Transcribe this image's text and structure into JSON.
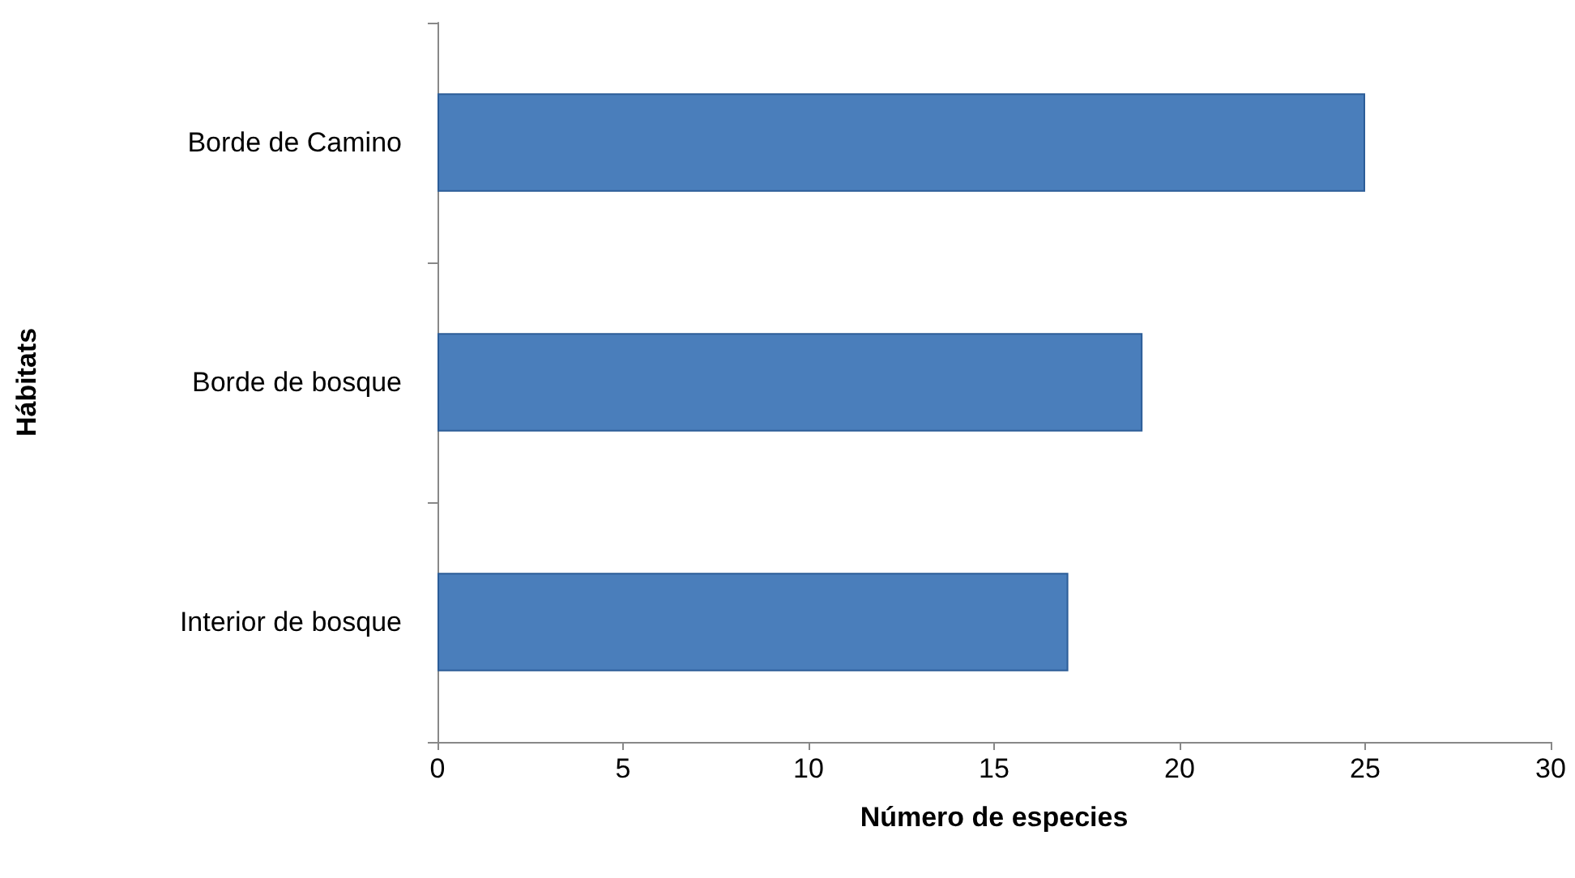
{
  "chart_data": {
    "type": "bar",
    "orientation": "horizontal",
    "xlabel": "Número de especies",
    "ylabel": "Hábitats",
    "categories": [
      "Borde de Camino",
      "Borde de bosque",
      "Interior de bosque"
    ],
    "values": [
      25,
      19,
      17
    ],
    "color": "#4a7ebb",
    "xlim": [
      0,
      30
    ],
    "xticks": [
      0,
      5,
      10,
      15,
      20,
      25,
      30
    ],
    "grid": false
  }
}
